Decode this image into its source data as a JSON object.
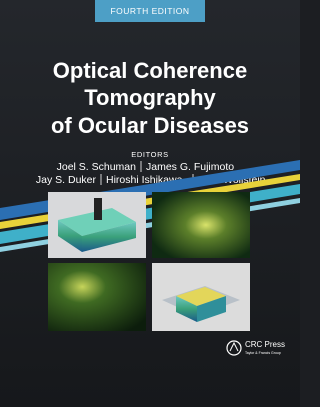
{
  "edition": "FOURTH EDITION",
  "title": [
    "Optical Coherence",
    "Tomography",
    "of Ocular Diseases"
  ],
  "editors_label": "EDITORS",
  "editors": [
    "Joel S. Schuman",
    "James G. Fujimoto",
    "Jay S. Duker",
    "Hiroshi Ishikawa",
    "Gadi Wollstein"
  ],
  "publisher": {
    "name": "CRC Press",
    "group": "Taylor & Francis Group"
  }
}
